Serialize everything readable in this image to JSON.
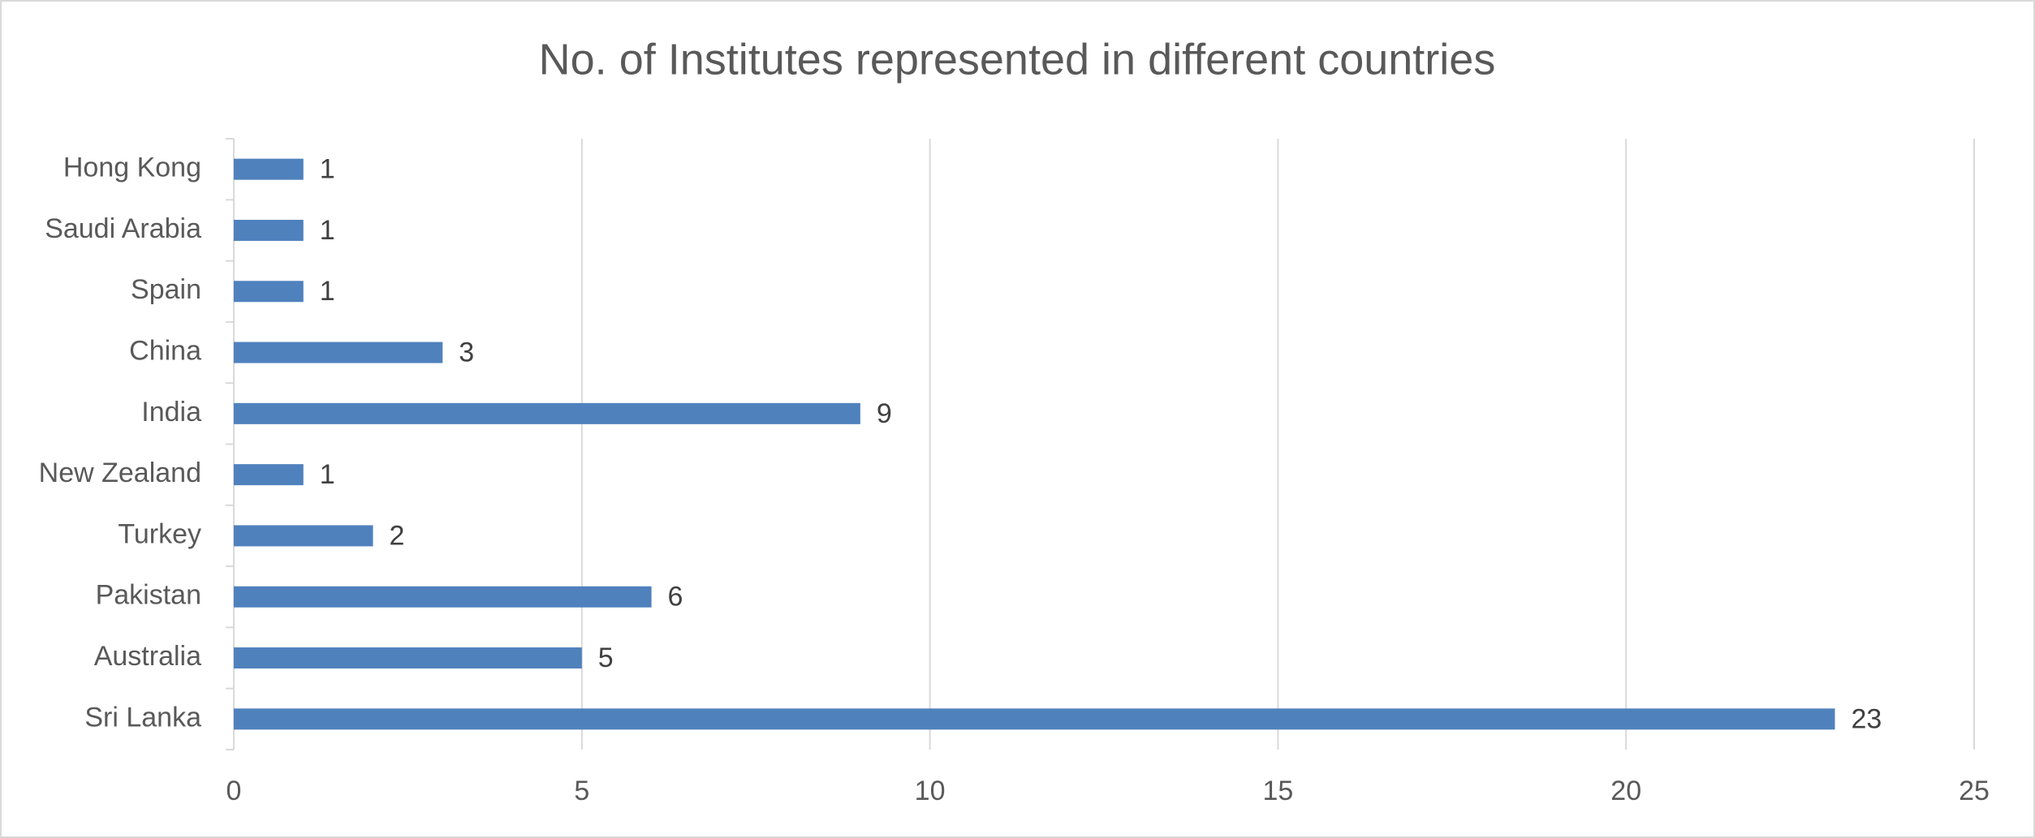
{
  "chart_data": {
    "type": "bar",
    "orientation": "horizontal",
    "title": "No. of Institutes represented in different countries",
    "categories": [
      "Hong Kong",
      "Saudi Arabia",
      "Spain",
      "China",
      "India",
      "New Zealand",
      "Turkey",
      "Pakistan",
      "Australia",
      "Sri Lanka"
    ],
    "values": [
      1,
      1,
      1,
      3,
      9,
      1,
      2,
      6,
      5,
      23
    ],
    "color": "#4f81bd",
    "xlim": [
      0,
      25
    ],
    "xticks": [
      0,
      5,
      10,
      15,
      20,
      25
    ],
    "grid": true,
    "data_labels": true
  }
}
